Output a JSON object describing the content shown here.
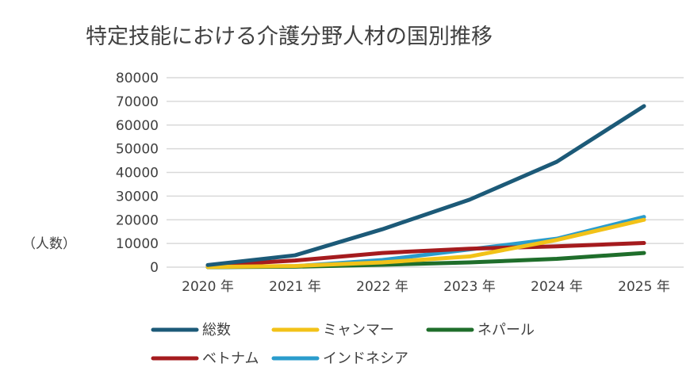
{
  "chart_data": {
    "type": "line",
    "title": "特定技能における介護分野人材の国別推移",
    "ylabel": "（人数）",
    "xlabel": "",
    "categories": [
      "2020 年",
      "2021 年",
      "2022 年",
      "2023 年",
      "2024 年",
      "2025 年"
    ],
    "ylim": [
      0,
      80000
    ],
    "yticks": [
      0,
      10000,
      20000,
      30000,
      40000,
      50000,
      60000,
      70000,
      80000
    ],
    "grid": true,
    "legend_position": "bottom",
    "series": [
      {
        "name": "総数",
        "color": "#1c5a78",
        "values": [
          900,
          5000,
          16000,
          28500,
          44500,
          68000
        ]
      },
      {
        "name": "ミャンマー",
        "color": "#f2c218",
        "values": [
          100,
          500,
          2000,
          4500,
          11500,
          20000
        ]
      },
      {
        "name": "ネパール",
        "color": "#1f6e2b",
        "values": [
          0,
          200,
          1000,
          2000,
          3500,
          6000
        ]
      },
      {
        "name": "ベトナム",
        "color": "#a51b1e",
        "values": [
          700,
          2800,
          6000,
          7800,
          8800,
          10200
        ]
      },
      {
        "name": "インドネシア",
        "color": "#2a9ccc",
        "values": [
          50,
          400,
          3000,
          7500,
          12000,
          21200
        ]
      }
    ]
  }
}
